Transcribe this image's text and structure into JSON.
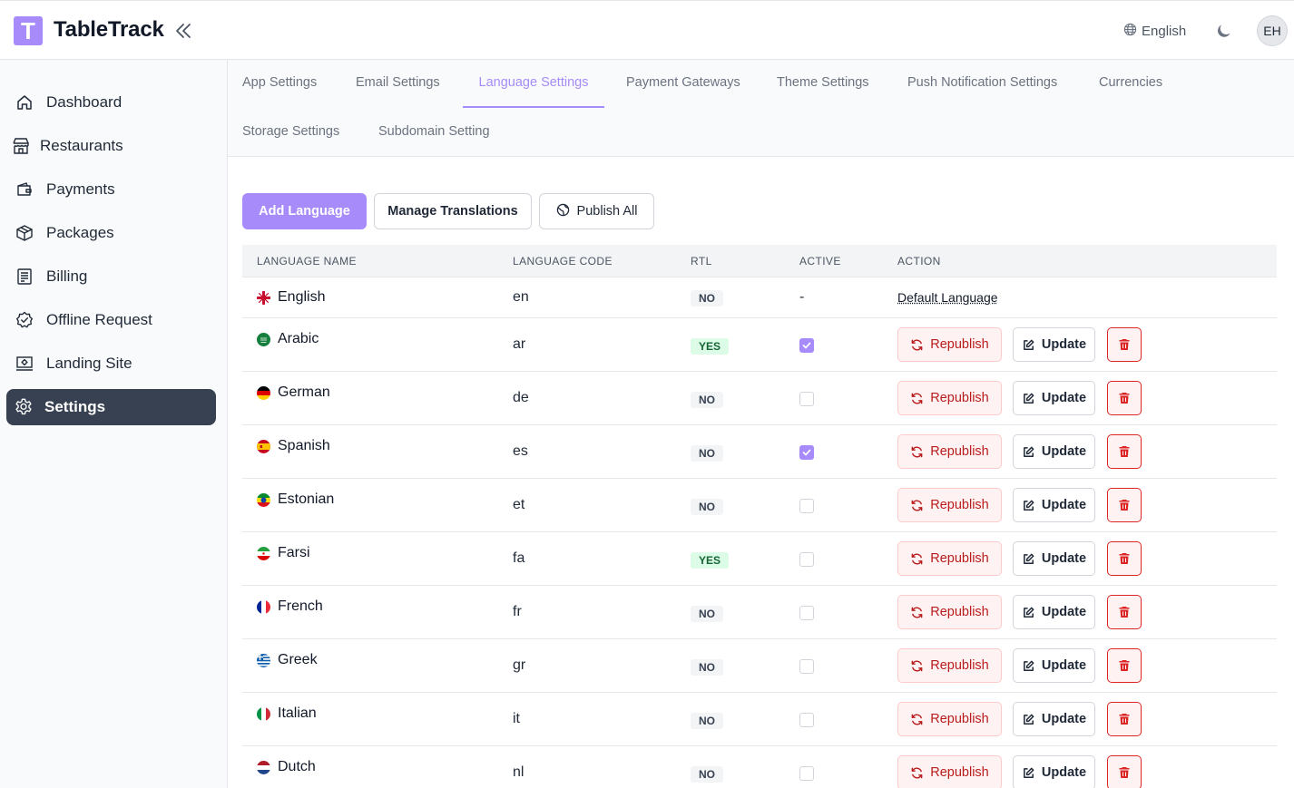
{
  "header": {
    "logo_letter": "T",
    "app_name": "TableTrack",
    "language": "English",
    "avatar_initials": "EH"
  },
  "sidebar": {
    "items": [
      {
        "label": "Dashboard",
        "icon": "home-icon"
      },
      {
        "label": "Restaurants",
        "icon": "store-icon"
      },
      {
        "label": "Payments",
        "icon": "wallet-icon"
      },
      {
        "label": "Packages",
        "icon": "box-icon"
      },
      {
        "label": "Billing",
        "icon": "receipt-icon"
      },
      {
        "label": "Offline Request",
        "icon": "badge-check-icon"
      },
      {
        "label": "Landing Site",
        "icon": "monitor-icon"
      },
      {
        "label": "Settings",
        "icon": "gear-icon",
        "active": true
      }
    ]
  },
  "tabs": [
    "App Settings",
    "Email Settings",
    "Language Settings",
    "Payment Gateways",
    "Theme Settings",
    "Push Notification Settings",
    "Currencies",
    "Storage Settings",
    "Subdomain Setting"
  ],
  "active_tab": "Language Settings",
  "toolbar": {
    "add_language": "Add Language",
    "manage_translations": "Manage Translations",
    "publish_all": "Publish All"
  },
  "table": {
    "headers": [
      "LANGUAGE NAME",
      "LANGUAGE CODE",
      "RTL",
      "ACTIVE",
      "ACTION"
    ],
    "default_label": "Default Language",
    "republish_label": "Republish",
    "update_label": "Update",
    "rows": [
      {
        "name": "English",
        "code": "en",
        "rtl": "NO",
        "active": "-",
        "default": true
      },
      {
        "name": "Arabic",
        "code": "ar",
        "rtl": "YES",
        "active": true
      },
      {
        "name": "German",
        "code": "de",
        "rtl": "NO",
        "active": false
      },
      {
        "name": "Spanish",
        "code": "es",
        "rtl": "NO",
        "active": true
      },
      {
        "name": "Estonian",
        "code": "et",
        "rtl": "NO",
        "active": false
      },
      {
        "name": "Farsi",
        "code": "fa",
        "rtl": "YES",
        "active": false
      },
      {
        "name": "French",
        "code": "fr",
        "rtl": "NO",
        "active": false
      },
      {
        "name": "Greek",
        "code": "gr",
        "rtl": "NO",
        "active": false
      },
      {
        "name": "Italian",
        "code": "it",
        "rtl": "NO",
        "active": false
      },
      {
        "name": "Dutch",
        "code": "nl",
        "rtl": "NO",
        "active": false
      }
    ]
  },
  "colors": {
    "accent": "#a78bfa",
    "sidebar_active": "#374151",
    "danger": "#dc2626"
  }
}
